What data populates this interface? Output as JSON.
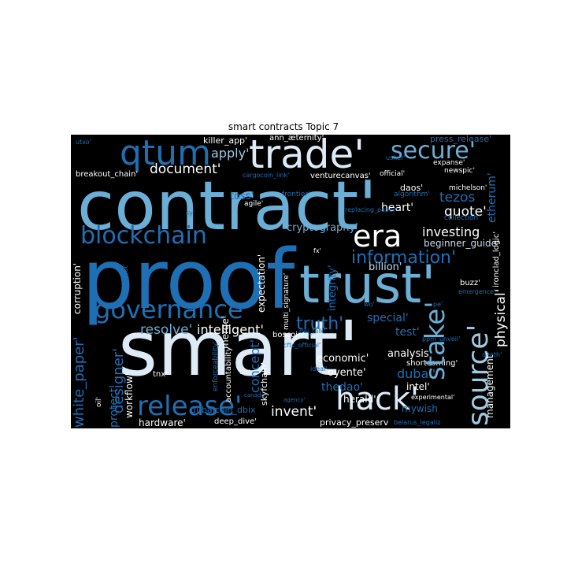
{
  "title": "smart contracts Topic 7",
  "colors": {
    "background": "#000000",
    "palette": [
      "#08306b",
      "#0d4a8f",
      "#1f6fb4",
      "#4a90c8",
      "#6baed6",
      "#9ecae1",
      "#c6dbef",
      "#deebf7",
      "#ffffff"
    ]
  },
  "words": [
    {
      "text": "contract'"
    },
    {
      "text": "proof"
    },
    {
      "text": "smart'"
    },
    {
      "text": "trust'"
    },
    {
      "text": "trade'"
    },
    {
      "text": "qtum"
    },
    {
      "text": "secure'"
    },
    {
      "text": "blockchain"
    },
    {
      "text": "era"
    },
    {
      "text": "governance"
    },
    {
      "text": "release'"
    },
    {
      "text": "hack'"
    },
    {
      "text": "source'"
    },
    {
      "text": "stake'"
    },
    {
      "text": "information'"
    },
    {
      "text": "truth'"
    },
    {
      "text": "document'"
    },
    {
      "text": "apply'"
    },
    {
      "text": "tezos"
    },
    {
      "text": "quote'"
    },
    {
      "text": "investing"
    },
    {
      "text": "heart'"
    },
    {
      "text": "cryptography'"
    },
    {
      "text": "beginner_guide'"
    },
    {
      "text": "billion'"
    },
    {
      "text": "integrity'"
    },
    {
      "text": "resolve'"
    },
    {
      "text": "intelligent'"
    },
    {
      "text": "special'"
    },
    {
      "text": "test'"
    },
    {
      "text": "analysis'"
    },
    {
      "text": "economic'"
    },
    {
      "text": "oyente'"
    },
    {
      "text": "dubai'"
    },
    {
      "text": "thedao'"
    },
    {
      "text": "herald'"
    },
    {
      "text": "intel'"
    },
    {
      "text": "invent'"
    },
    {
      "text": "mywish"
    },
    {
      "text": "concept'"
    },
    {
      "text": "designer'"
    },
    {
      "text": "white_paper'"
    },
    {
      "text": "protect'"
    },
    {
      "text": "workflow'"
    },
    {
      "text": "physical'"
    },
    {
      "text": "management'"
    },
    {
      "text": "corruption'"
    },
    {
      "text": "merge'"
    },
    {
      "text": "expectation'"
    },
    {
      "text": "boscoin'"
    },
    {
      "text": "skyfchain'"
    },
    {
      "text": "accountability'"
    },
    {
      "text": "shortcoming'"
    },
    {
      "text": "hardware'"
    },
    {
      "text": "deep_dive'"
    },
    {
      "text": "privacy_preserv"
    },
    {
      "text": "dubaicoin_dbix"
    },
    {
      "text": "killer_app'"
    },
    {
      "text": "ann_æternity'"
    },
    {
      "text": "breakout_chain'"
    },
    {
      "text": "venturecanvas'"
    },
    {
      "text": "daos'"
    },
    {
      "text": "newspic'"
    },
    {
      "text": "press_release'"
    },
    {
      "text": "expanse'"
    },
    {
      "text": "michelson'"
    },
    {
      "text": "collection'"
    },
    {
      "text": "official'"
    },
    {
      "text": "toss'"
    },
    {
      "text": "agile'"
    },
    {
      "text": "frontier'"
    },
    {
      "text": "algorithm'"
    },
    {
      "text": "etherum'"
    },
    {
      "text": "buzz'"
    },
    {
      "text": "emergence'"
    },
    {
      "text": "ironclad_logic'"
    },
    {
      "text": "multi_signature'"
    },
    {
      "text": "dai_talk'"
    },
    {
      "text": "cftc_official'"
    },
    {
      "text": "experimental'"
    },
    {
      "text": "belarus_legaliz"
    },
    {
      "text": "agency'"
    },
    {
      "text": "enforceability'"
    },
    {
      "text": "ideal'"
    },
    {
      "text": "tnx'"
    },
    {
      "text": "tcc'"
    },
    {
      "text": "canada'"
    },
    {
      "text": "oil'"
    },
    {
      "text": "fx'"
    },
    {
      "text": "utxo'"
    },
    {
      "text": "usher'"
    },
    {
      "text": "cargocoin_link'"
    },
    {
      "text": "replacing_paper'"
    },
    {
      "text": "sy'"
    },
    {
      "text": "rdbut'"
    },
    {
      "text": "death'"
    },
    {
      "text": "ppm_unveil'"
    },
    {
      "text": "pe'"
    },
    {
      "text": "wo'"
    }
  ]
}
